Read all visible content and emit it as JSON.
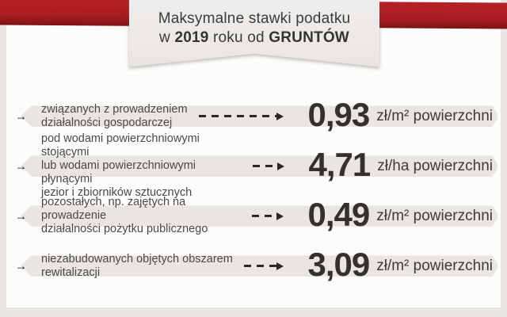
{
  "page": {
    "background_color": "#e9e6e3",
    "panel_color": "#fcfcfb"
  },
  "header": {
    "ribbon_color": "#a81d22",
    "badge_color": "#edebe9",
    "title_line1": "Maksymalne stawki podatku",
    "title_line2": {
      "part1": "w ",
      "year": "2019",
      "part2": " roku od ",
      "subject": "GRUNTÓW"
    }
  },
  "rows": [
    {
      "pointer_icon": "→",
      "description": "związanych z prowadzeniem\ndziałalności gospodarczej",
      "value": "0,93",
      "unit": "zł/m² powierzchni"
    },
    {
      "pointer_icon": "→",
      "description": "pod wodami powierzchniowymi stojącymi\nlub wodami powierzchniowymi płynącymi\njezior i zbiorników sztucznych",
      "value": "4,71",
      "unit": "zł/ha powierzchni"
    },
    {
      "pointer_icon": "→",
      "description": "pozostałych, np. zajętych na prowadzenie\ndziałalności pożytku publicznego",
      "value": "0,49",
      "unit": "zł/m² powierzchni"
    },
    {
      "pointer_icon": "→",
      "description": "niezabudowanych objętych obszarem\nrewitalizacji",
      "value": "3,09",
      "unit": "zł/m² powierzchni"
    }
  ],
  "colors": {
    "ribbon_red": "#a81d22",
    "ribbon_red_dark": "#7e1216",
    "band_gray": "#e8e5e2",
    "text_dark": "#3b3b3b",
    "value_color": "#33302e"
  }
}
